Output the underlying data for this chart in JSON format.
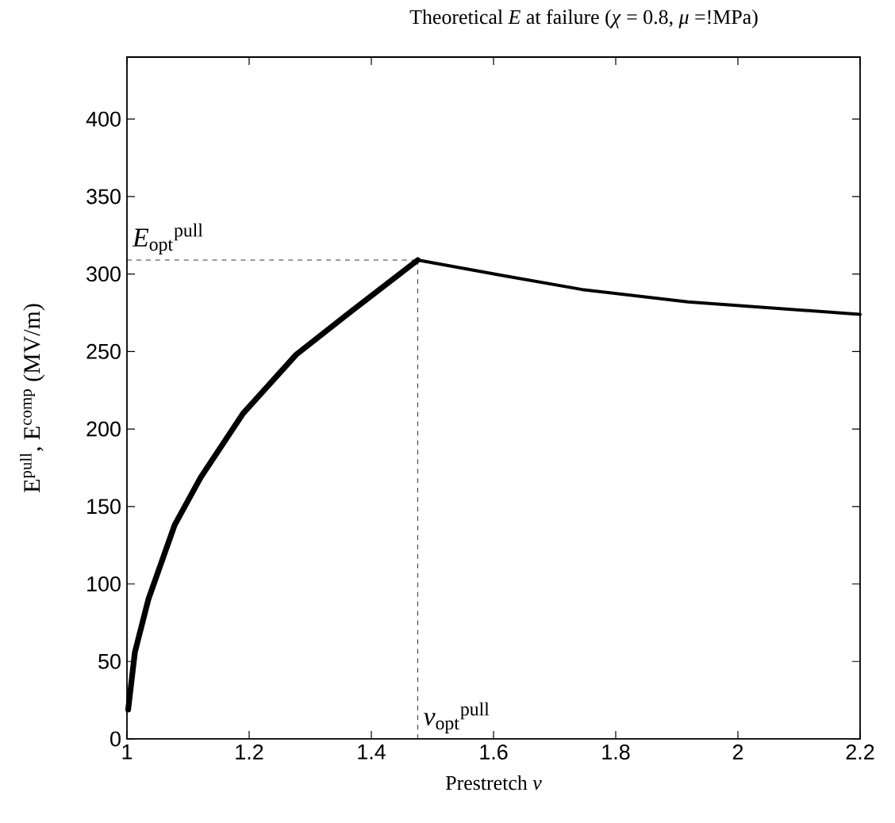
{
  "chart_data": {
    "type": "line",
    "title": "Theoretical *E* at failure (*χ* = 0.8, *μ* =!MPa)",
    "xlabel": "Prestretch *ν*",
    "ylabel": "E$^{pull}$, E$^{comp}$ (MV/m)",
    "xlim": [
      1,
      2.2
    ],
    "ylim": [
      0,
      440
    ],
    "xticks": [
      1,
      1.2,
      1.4,
      1.6,
      1.8,
      2,
      2.2
    ],
    "yticks": [
      0,
      50,
      100,
      150,
      200,
      250,
      300,
      350,
      400
    ],
    "series": [
      {
        "color": "#000000",
        "x": [
          1.002,
          1.013,
          1.035,
          1.078,
          1.121,
          1.19,
          1.277,
          1.364,
          1.476
        ],
        "values": [
          19,
          56,
          90,
          138,
          169,
          210,
          248,
          275,
          309
        ]
      },
      {
        "color": "#000000",
        "x": [
          1.476,
          1.615,
          1.745,
          1.918,
          2.2
        ],
        "values": [
          309,
          299,
          290,
          282,
          274
        ]
      }
    ],
    "ref_lines": [
      {
        "axis": "y",
        "value": 309,
        "line_style": "dashed"
      },
      {
        "axis": "x",
        "value": 1.476,
        "line_style": "dashed"
      }
    ],
    "annotations": [
      {
        "text": "*E*$_{opt}$$^{pull}$",
        "x": 1,
        "y": 309
      },
      {
        "text": "*ν*$_{opt}$$^{pull}$",
        "x": 1.476,
        "y": 0
      }
    ],
    "marker": "none",
    "line_style": "solid"
  }
}
